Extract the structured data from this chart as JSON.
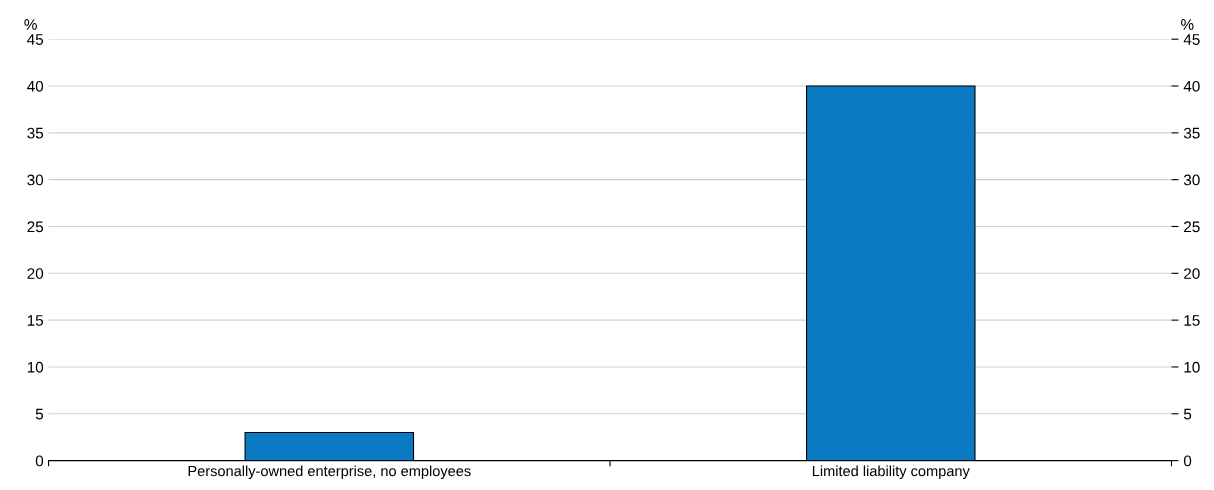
{
  "chart_data": {
    "type": "bar",
    "categories": [
      "Personally-owned enterprise, no employees",
      "Limited liability company"
    ],
    "values": [
      3,
      40
    ],
    "color": "#0a7bc2",
    "ylim": [
      0,
      45
    ],
    "yticks": [
      0,
      5,
      10,
      15,
      20,
      25,
      30,
      35,
      40,
      45
    ],
    "y2lim": [
      0,
      45
    ],
    "y2ticks": [
      0,
      5,
      10,
      15,
      20,
      25,
      30,
      35,
      40,
      45
    ],
    "ylabel": "%",
    "y2label": "%",
    "grid": "y",
    "legend": false
  }
}
